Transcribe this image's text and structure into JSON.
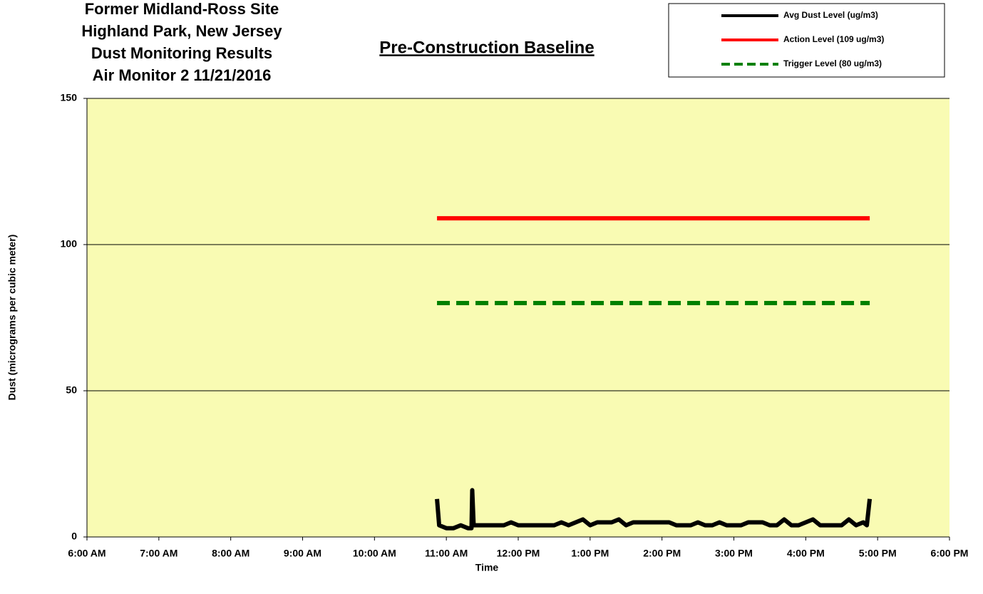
{
  "chart_data": {
    "type": "line",
    "title": [
      "Former Midland-Ross Site",
      "Highland Park, New Jersey",
      "Dust Monitoring Results",
      "Air Monitor 2  11/21/2016"
    ],
    "subtitle": "Pre-Construction Baseline",
    "xlabel": "Time",
    "ylabel": "Dust (micrograms per cubic meter)",
    "xlim": [
      6,
      18
    ],
    "xticks": [
      {
        "value": 6,
        "label": "6:00 AM"
      },
      {
        "value": 7,
        "label": "7:00 AM"
      },
      {
        "value": 8,
        "label": "8:00 AM"
      },
      {
        "value": 9,
        "label": "9:00 AM"
      },
      {
        "value": 10,
        "label": "10:00 AM"
      },
      {
        "value": 11,
        "label": "11:00 AM"
      },
      {
        "value": 12,
        "label": "12:00 PM"
      },
      {
        "value": 13,
        "label": "1:00 PM"
      },
      {
        "value": 14,
        "label": "2:00 PM"
      },
      {
        "value": 15,
        "label": "3:00 PM"
      },
      {
        "value": 16,
        "label": "4:00 PM"
      },
      {
        "value": 17,
        "label": "5:00 PM"
      },
      {
        "value": 18,
        "label": "6:00 PM"
      }
    ],
    "ylim": [
      0,
      150
    ],
    "yticks": [
      0,
      50,
      100,
      150
    ],
    "grid": true,
    "background": "#f9fbb3",
    "legend": "top-right",
    "series": [
      {
        "name": "Avg Dust Level (ug/m3)",
        "color": "#000000",
        "style": "solid",
        "x": [
          10.87,
          10.9,
          11.0,
          11.1,
          11.2,
          11.3,
          11.35,
          11.36,
          11.38,
          11.5,
          11.6,
          11.7,
          11.8,
          11.9,
          12.0,
          12.1,
          12.2,
          12.3,
          12.4,
          12.5,
          12.6,
          12.7,
          12.8,
          12.9,
          13.0,
          13.1,
          13.2,
          13.3,
          13.4,
          13.5,
          13.6,
          13.7,
          13.8,
          13.9,
          14.0,
          14.1,
          14.2,
          14.3,
          14.4,
          14.5,
          14.6,
          14.7,
          14.8,
          14.9,
          15.0,
          15.1,
          15.2,
          15.3,
          15.4,
          15.5,
          15.6,
          15.7,
          15.8,
          15.9,
          16.0,
          16.1,
          16.2,
          16.3,
          16.4,
          16.5,
          16.6,
          16.7,
          16.8,
          16.85,
          16.89
        ],
        "values": [
          13,
          4,
          3,
          3,
          4,
          3,
          3,
          16,
          4,
          4,
          4,
          4,
          4,
          5,
          4,
          4,
          4,
          4,
          4,
          4,
          5,
          4,
          5,
          6,
          4,
          5,
          5,
          5,
          6,
          4,
          5,
          5,
          5,
          5,
          5,
          5,
          4,
          4,
          4,
          5,
          4,
          4,
          5,
          4,
          4,
          4,
          5,
          5,
          5,
          4,
          4,
          6,
          4,
          4,
          5,
          6,
          4,
          4,
          4,
          4,
          6,
          4,
          5,
          4,
          13
        ]
      },
      {
        "name": "Action Level (109 ug/m3)",
        "color": "#ff0000",
        "style": "solid",
        "x": [
          10.87,
          16.89
        ],
        "values": [
          109,
          109
        ]
      },
      {
        "name": "Trigger Level  (80 ug/m3)",
        "color": "#008000",
        "style": "dashed",
        "x": [
          10.87,
          16.89
        ],
        "values": [
          80,
          80
        ]
      }
    ]
  }
}
